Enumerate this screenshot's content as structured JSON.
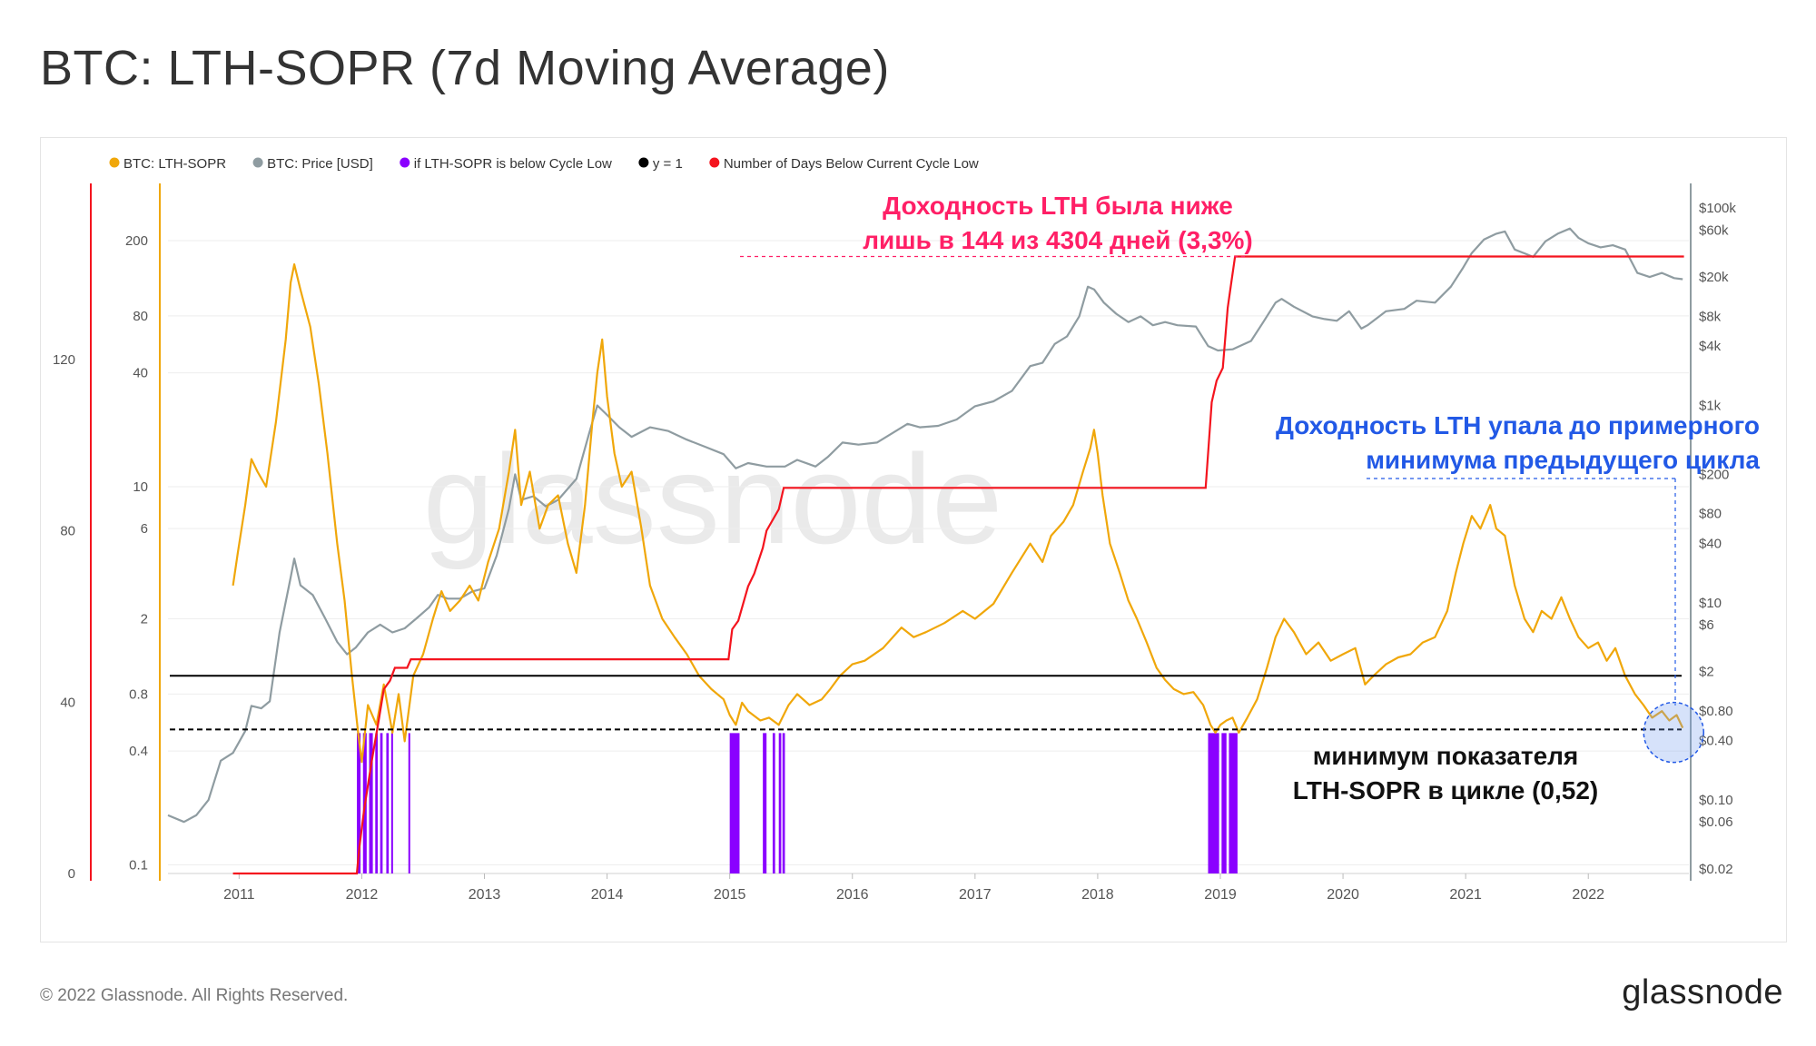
{
  "title": "BTC: LTH-SOPR (7d Moving Average)",
  "footer": {
    "copyright": "© 2022 Glassnode. All Rights Reserved.",
    "logo": "glassnode"
  },
  "watermark": "glassnode",
  "annotations": {
    "red": [
      "Доходность LTH была ниже",
      "лишь в 144  из  4304 дней (3,3%)"
    ],
    "blue": [
      "Доходность LTH упала до примерного",
      "минимума предыдущего цикла"
    ],
    "black": [
      "минимум показателя",
      "LTH-SOPR в цикле (0,52)"
    ]
  },
  "colors": {
    "sopr": "#f0a70a",
    "price": "#8f9ca1",
    "below": "#8a00ff",
    "y1": "#000000",
    "days": "#f4141e",
    "red_ann": "#ff1f66",
    "blue_ann": "#2259e6"
  },
  "chart_data": {
    "type": "line",
    "legend": [
      {
        "label": "BTC: LTH-SOPR",
        "color": "#f0a70a"
      },
      {
        "label": "BTC: Price [USD]",
        "color": "#8f9ca1"
      },
      {
        "label": "if LTH-SOPR is below Cycle Low",
        "color": "#8a00ff"
      },
      {
        "label": "y = 1",
        "color": "#000000"
      },
      {
        "label": "Number of Days Below Current Cycle Low",
        "color": "#f4141e"
      }
    ],
    "x_ticks": [
      {
        "label": "2011",
        "value": 2011
      },
      {
        "label": "2012",
        "value": 2012
      },
      {
        "label": "2013",
        "value": 2013
      },
      {
        "label": "2014",
        "value": 2014
      },
      {
        "label": "2015",
        "value": 2015
      },
      {
        "label": "2016",
        "value": 2016
      },
      {
        "label": "2017",
        "value": 2017
      },
      {
        "label": "2018",
        "value": 2018
      },
      {
        "label": "2019",
        "value": 2019
      },
      {
        "label": "2020",
        "value": 2020
      },
      {
        "label": "2021",
        "value": 2021
      },
      {
        "label": "2022",
        "value": 2022
      }
    ],
    "xlim": [
      2010.42,
      2022.82
    ],
    "days_axis": {
      "ticks": [
        0,
        40,
        80,
        120
      ],
      "ylim": [
        0,
        160
      ]
    },
    "sopr_axis": {
      "scale": "log",
      "ticks": [
        "200",
        "80",
        "40",
        "10",
        "6",
        "2",
        "0.8",
        "0.4",
        "0.1"
      ],
      "ylim": [
        0.09,
        380
      ]
    },
    "price_axis": {
      "scale": "log",
      "ticks": [
        "$100k",
        "$60k",
        "$20k",
        "$8k",
        "$4k",
        "$1k",
        "$200",
        "$80",
        "$40",
        "$10",
        "$6",
        "$2",
        "$0.80",
        "$0.40",
        "$0.10",
        "$0.06",
        "$0.02"
      ],
      "ylim": [
        0.018,
        160000
      ]
    },
    "y_equals_1": 1,
    "cycle_low_sopr": 0.52,
    "sopr_series": [
      [
        2010.95,
        3
      ],
      [
        2010.99,
        4.5
      ],
      [
        2011.05,
        8
      ],
      [
        2011.1,
        14
      ],
      [
        2011.15,
        12
      ],
      [
        2011.22,
        10
      ],
      [
        2011.3,
        22
      ],
      [
        2011.38,
        60
      ],
      [
        2011.42,
        120
      ],
      [
        2011.45,
        150
      ],
      [
        2011.5,
        110
      ],
      [
        2011.58,
        70
      ],
      [
        2011.65,
        35
      ],
      [
        2011.72,
        15
      ],
      [
        2011.8,
        5
      ],
      [
        2011.86,
        2.5
      ],
      [
        2011.92,
        1.0
      ],
      [
        2011.97,
        0.5
      ],
      [
        2012.0,
        0.35
      ],
      [
        2012.05,
        0.7
      ],
      [
        2012.12,
        0.55
      ],
      [
        2012.18,
        0.9
      ],
      [
        2012.25,
        0.5
      ],
      [
        2012.3,
        0.8
      ],
      [
        2012.35,
        0.45
      ],
      [
        2012.42,
        1.0
      ],
      [
        2012.5,
        1.3
      ],
      [
        2012.58,
        2.0
      ],
      [
        2012.65,
        2.8
      ],
      [
        2012.72,
        2.2
      ],
      [
        2012.8,
        2.5
      ],
      [
        2012.88,
        3.0
      ],
      [
        2012.95,
        2.5
      ],
      [
        2013.03,
        4.0
      ],
      [
        2013.12,
        6.0
      ],
      [
        2013.2,
        12
      ],
      [
        2013.25,
        20
      ],
      [
        2013.3,
        8
      ],
      [
        2013.37,
        12
      ],
      [
        2013.45,
        6
      ],
      [
        2013.52,
        8
      ],
      [
        2013.6,
        9
      ],
      [
        2013.68,
        5
      ],
      [
        2013.75,
        3.5
      ],
      [
        2013.82,
        8
      ],
      [
        2013.88,
        22
      ],
      [
        2013.92,
        40
      ],
      [
        2013.96,
        60
      ],
      [
        2014.0,
        30
      ],
      [
        2014.06,
        15
      ],
      [
        2014.12,
        10
      ],
      [
        2014.2,
        12
      ],
      [
        2014.28,
        6
      ],
      [
        2014.35,
        3
      ],
      [
        2014.45,
        2.0
      ],
      [
        2014.55,
        1.6
      ],
      [
        2014.65,
        1.3
      ],
      [
        2014.75,
        1.0
      ],
      [
        2014.85,
        0.85
      ],
      [
        2014.95,
        0.75
      ],
      [
        2015.0,
        0.62
      ],
      [
        2015.05,
        0.55
      ],
      [
        2015.1,
        0.72
      ],
      [
        2015.15,
        0.65
      ],
      [
        2015.25,
        0.58
      ],
      [
        2015.32,
        0.6
      ],
      [
        2015.4,
        0.55
      ],
      [
        2015.48,
        0.7
      ],
      [
        2015.55,
        0.8
      ],
      [
        2015.65,
        0.7
      ],
      [
        2015.75,
        0.75
      ],
      [
        2015.82,
        0.85
      ],
      [
        2015.9,
        1.0
      ],
      [
        2016.0,
        1.15
      ],
      [
        2016.1,
        1.2
      ],
      [
        2016.25,
        1.4
      ],
      [
        2016.4,
        1.8
      ],
      [
        2016.5,
        1.6
      ],
      [
        2016.6,
        1.7
      ],
      [
        2016.75,
        1.9
      ],
      [
        2016.9,
        2.2
      ],
      [
        2017.0,
        2.0
      ],
      [
        2017.15,
        2.4
      ],
      [
        2017.3,
        3.5
      ],
      [
        2017.45,
        5.0
      ],
      [
        2017.55,
        4.0
      ],
      [
        2017.62,
        5.5
      ],
      [
        2017.72,
        6.5
      ],
      [
        2017.8,
        8.0
      ],
      [
        2017.88,
        12
      ],
      [
        2017.94,
        16
      ],
      [
        2017.97,
        20
      ],
      [
        2018.0,
        15
      ],
      [
        2018.04,
        9
      ],
      [
        2018.1,
        5
      ],
      [
        2018.18,
        3.5
      ],
      [
        2018.25,
        2.5
      ],
      [
        2018.32,
        2.0
      ],
      [
        2018.4,
        1.5
      ],
      [
        2018.48,
        1.1
      ],
      [
        2018.55,
        0.95
      ],
      [
        2018.62,
        0.85
      ],
      [
        2018.7,
        0.8
      ],
      [
        2018.78,
        0.82
      ],
      [
        2018.86,
        0.7
      ],
      [
        2018.92,
        0.55
      ],
      [
        2018.96,
        0.5
      ],
      [
        2019.0,
        0.55
      ],
      [
        2019.05,
        0.58
      ],
      [
        2019.1,
        0.6
      ],
      [
        2019.15,
        0.5
      ],
      [
        2019.22,
        0.6
      ],
      [
        2019.3,
        0.75
      ],
      [
        2019.38,
        1.1
      ],
      [
        2019.45,
        1.6
      ],
      [
        2019.52,
        2.0
      ],
      [
        2019.6,
        1.7
      ],
      [
        2019.7,
        1.3
      ],
      [
        2019.8,
        1.5
      ],
      [
        2019.9,
        1.2
      ],
      [
        2020.0,
        1.3
      ],
      [
        2020.1,
        1.4
      ],
      [
        2020.18,
        0.9
      ],
      [
        2020.25,
        1.0
      ],
      [
        2020.35,
        1.15
      ],
      [
        2020.45,
        1.25
      ],
      [
        2020.55,
        1.3
      ],
      [
        2020.65,
        1.5
      ],
      [
        2020.75,
        1.6
      ],
      [
        2020.85,
        2.2
      ],
      [
        2020.92,
        3.5
      ],
      [
        2020.98,
        5.0
      ],
      [
        2021.05,
        7.0
      ],
      [
        2021.12,
        6.0
      ],
      [
        2021.2,
        8.0
      ],
      [
        2021.25,
        6.0
      ],
      [
        2021.32,
        5.5
      ],
      [
        2021.4,
        3.0
      ],
      [
        2021.48,
        2.0
      ],
      [
        2021.55,
        1.7
      ],
      [
        2021.62,
        2.2
      ],
      [
        2021.7,
        2.0
      ],
      [
        2021.78,
        2.6
      ],
      [
        2021.85,
        2.0
      ],
      [
        2021.92,
        1.6
      ],
      [
        2022.0,
        1.4
      ],
      [
        2022.08,
        1.5
      ],
      [
        2022.15,
        1.2
      ],
      [
        2022.22,
        1.4
      ],
      [
        2022.3,
        1.0
      ],
      [
        2022.38,
        0.8
      ],
      [
        2022.45,
        0.7
      ],
      [
        2022.52,
        0.6
      ],
      [
        2022.6,
        0.65
      ],
      [
        2022.66,
        0.58
      ],
      [
        2022.72,
        0.62
      ],
      [
        2022.77,
        0.53
      ]
    ],
    "price_series": [
      [
        2010.42,
        0.07
      ],
      [
        2010.55,
        0.06
      ],
      [
        2010.65,
        0.07
      ],
      [
        2010.75,
        0.1
      ],
      [
        2010.85,
        0.25
      ],
      [
        2010.95,
        0.3
      ],
      [
        2011.05,
        0.5
      ],
      [
        2011.1,
        0.9
      ],
      [
        2011.18,
        0.85
      ],
      [
        2011.25,
        1.0
      ],
      [
        2011.33,
        5
      ],
      [
        2011.42,
        18
      ],
      [
        2011.45,
        28
      ],
      [
        2011.5,
        15
      ],
      [
        2011.6,
        12
      ],
      [
        2011.7,
        7
      ],
      [
        2011.8,
        4
      ],
      [
        2011.88,
        3
      ],
      [
        2011.95,
        3.5
      ],
      [
        2012.05,
        5
      ],
      [
        2012.15,
        6
      ],
      [
        2012.25,
        5
      ],
      [
        2012.35,
        5.5
      ],
      [
        2012.45,
        7
      ],
      [
        2012.55,
        9
      ],
      [
        2012.62,
        12
      ],
      [
        2012.7,
        11
      ],
      [
        2012.8,
        11
      ],
      [
        2012.9,
        13
      ],
      [
        2013.0,
        14
      ],
      [
        2013.1,
        30
      ],
      [
        2013.2,
        90
      ],
      [
        2013.25,
        200
      ],
      [
        2013.3,
        110
      ],
      [
        2013.4,
        120
      ],
      [
        2013.5,
        95
      ],
      [
        2013.6,
        110
      ],
      [
        2013.75,
        180
      ],
      [
        2013.85,
        500
      ],
      [
        2013.92,
        1000
      ],
      [
        2014.0,
        800
      ],
      [
        2014.1,
        600
      ],
      [
        2014.2,
        480
      ],
      [
        2014.35,
        600
      ],
      [
        2014.5,
        550
      ],
      [
        2014.65,
        450
      ],
      [
        2014.8,
        380
      ],
      [
        2014.95,
        320
      ],
      [
        2015.05,
        230
      ],
      [
        2015.15,
        260
      ],
      [
        2015.3,
        240
      ],
      [
        2015.45,
        240
      ],
      [
        2015.55,
        280
      ],
      [
        2015.7,
        240
      ],
      [
        2015.8,
        300
      ],
      [
        2015.92,
        420
      ],
      [
        2016.05,
        400
      ],
      [
        2016.2,
        420
      ],
      [
        2016.45,
        650
      ],
      [
        2016.55,
        600
      ],
      [
        2016.7,
        620
      ],
      [
        2016.85,
        720
      ],
      [
        2017.0,
        980
      ],
      [
        2017.15,
        1100
      ],
      [
        2017.3,
        1400
      ],
      [
        2017.45,
        2500
      ],
      [
        2017.55,
        2700
      ],
      [
        2017.65,
        4200
      ],
      [
        2017.75,
        5000
      ],
      [
        2017.85,
        8000
      ],
      [
        2017.92,
        16000
      ],
      [
        2017.97,
        15000
      ],
      [
        2018.05,
        11000
      ],
      [
        2018.15,
        8500
      ],
      [
        2018.25,
        7000
      ],
      [
        2018.35,
        8000
      ],
      [
        2018.45,
        6500
      ],
      [
        2018.55,
        7000
      ],
      [
        2018.65,
        6500
      ],
      [
        2018.8,
        6300
      ],
      [
        2018.9,
        4000
      ],
      [
        2018.98,
        3600
      ],
      [
        2019.1,
        3700
      ],
      [
        2019.25,
        4500
      ],
      [
        2019.35,
        7000
      ],
      [
        2019.45,
        11000
      ],
      [
        2019.5,
        12000
      ],
      [
        2019.6,
        10000
      ],
      [
        2019.75,
        8000
      ],
      [
        2019.85,
        7500
      ],
      [
        2019.95,
        7200
      ],
      [
        2020.05,
        9000
      ],
      [
        2020.15,
        6000
      ],
      [
        2020.2,
        6500
      ],
      [
        2020.35,
        9000
      ],
      [
        2020.5,
        9500
      ],
      [
        2020.6,
        11500
      ],
      [
        2020.75,
        11000
      ],
      [
        2020.88,
        16000
      ],
      [
        2020.98,
        25000
      ],
      [
        2021.05,
        35000
      ],
      [
        2021.15,
        48000
      ],
      [
        2021.25,
        55000
      ],
      [
        2021.32,
        58000
      ],
      [
        2021.4,
        38000
      ],
      [
        2021.5,
        34000
      ],
      [
        2021.55,
        32000
      ],
      [
        2021.65,
        46000
      ],
      [
        2021.75,
        55000
      ],
      [
        2021.85,
        62000
      ],
      [
        2021.92,
        50000
      ],
      [
        2022.0,
        44000
      ],
      [
        2022.1,
        40000
      ],
      [
        2022.2,
        42000
      ],
      [
        2022.3,
        38000
      ],
      [
        2022.4,
        22000
      ],
      [
        2022.5,
        20000
      ],
      [
        2022.6,
        22000
      ],
      [
        2022.7,
        19500
      ],
      [
        2022.77,
        19000
      ]
    ],
    "days_series": [
      [
        2010.95,
        0
      ],
      [
        2011.96,
        0
      ],
      [
        2011.98,
        6
      ],
      [
        2012.02,
        15
      ],
      [
        2012.08,
        26
      ],
      [
        2012.14,
        36
      ],
      [
        2012.18,
        43
      ],
      [
        2012.23,
        45
      ],
      [
        2012.27,
        48
      ],
      [
        2012.37,
        48
      ],
      [
        2012.4,
        50
      ],
      [
        2014.99,
        50
      ],
      [
        2015.02,
        57
      ],
      [
        2015.07,
        59
      ],
      [
        2015.15,
        67
      ],
      [
        2015.2,
        70
      ],
      [
        2015.27,
        76
      ],
      [
        2015.3,
        80
      ],
      [
        2015.4,
        85
      ],
      [
        2015.44,
        90
      ],
      [
        2018.88,
        90
      ],
      [
        2018.93,
        110
      ],
      [
        2018.97,
        115
      ],
      [
        2019.02,
        118
      ],
      [
        2019.06,
        132
      ],
      [
        2019.09,
        138
      ],
      [
        2019.12,
        144
      ],
      [
        2022.78,
        144
      ]
    ],
    "below_spans": [
      [
        2011.96,
        2011.99
      ],
      [
        2012.01,
        2012.04
      ],
      [
        2012.06,
        2012.09
      ],
      [
        2012.11,
        2012.13
      ],
      [
        2012.15,
        2012.17
      ],
      [
        2012.2,
        2012.22
      ],
      [
        2012.24,
        2012.25
      ],
      [
        2012.38,
        2012.39
      ],
      [
        2015.0,
        2015.08
      ],
      [
        2015.27,
        2015.3
      ],
      [
        2015.35,
        2015.37
      ],
      [
        2015.4,
        2015.42
      ],
      [
        2015.43,
        2015.45
      ],
      [
        2018.9,
        2018.99
      ],
      [
        2019.01,
        2019.05
      ],
      [
        2019.07,
        2019.14
      ]
    ]
  }
}
